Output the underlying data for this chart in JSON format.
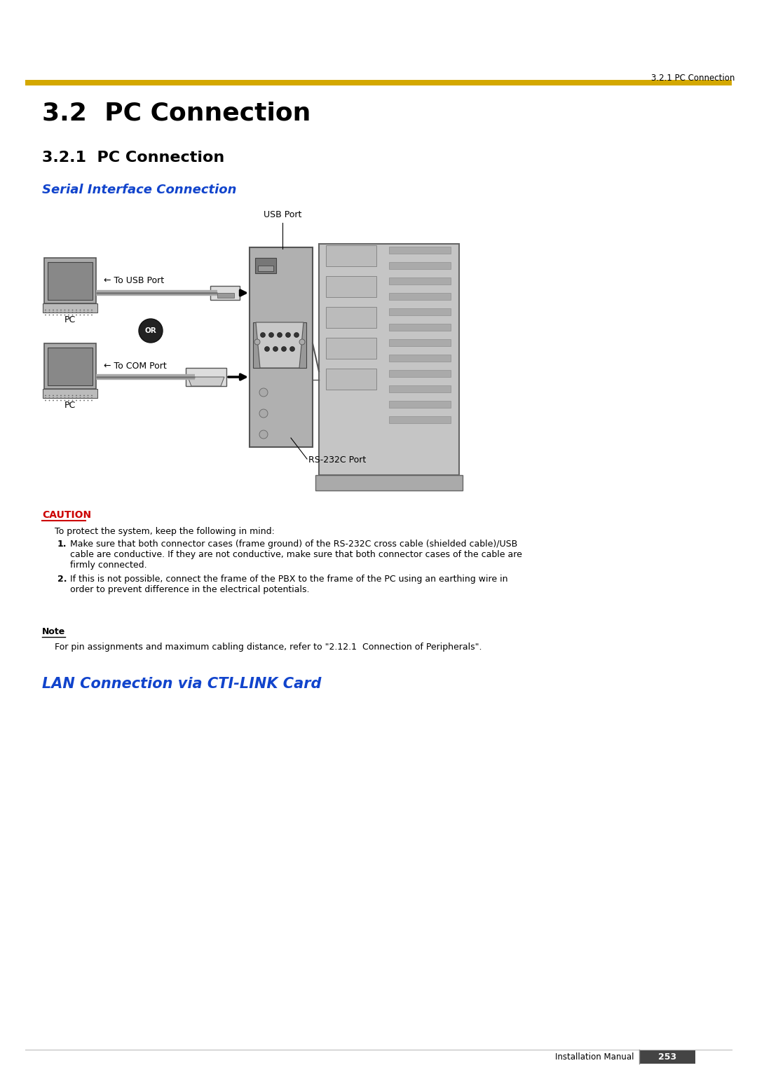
{
  "page_header_text": "3.2.1 PC Connection",
  "header_bar_color": "#D4A800",
  "title_main": "3.2  PC Connection",
  "title_sub": "3.2.1  PC Connection",
  "subtitle_serial": "Serial Interface Connection",
  "subtitle_serial_color": "#1144CC",
  "label_usb_port": "USB Port",
  "label_rs232c": "RS-232C Port",
  "label_to_usb": "← To USB Port",
  "label_to_com": "← To COM Port",
  "label_pc": "PC",
  "label_or": "OR",
  "caution_title": "CAUTION",
  "caution_color": "#CC0000",
  "caution_intro": "To protect the system, keep the following in mind:",
  "caution_item1_line1": "Make sure that both connector cases (frame ground) of the RS-232C cross cable (shielded cable)/USB",
  "caution_item1_line2": "cable are conductive. If they are not conductive, make sure that both connector cases of the cable are",
  "caution_item1_line3": "firmly connected.",
  "caution_item2_line1": "If this is not possible, connect the frame of the PBX to the frame of the PC using an earthing wire in",
  "caution_item2_line2": "order to prevent difference in the electrical potentials.",
  "note_title": "Note",
  "note_text": "For pin assignments and maximum cabling distance, refer to \"2.12.1  Connection of Peripherals\".",
  "subtitle_lan": "LAN Connection via CTI-LINK Card",
  "subtitle_lan_color": "#1144CC",
  "footer_text": "Installation Manual",
  "footer_page": "253",
  "bg_color": "#FFFFFF",
  "text_color": "#000000"
}
